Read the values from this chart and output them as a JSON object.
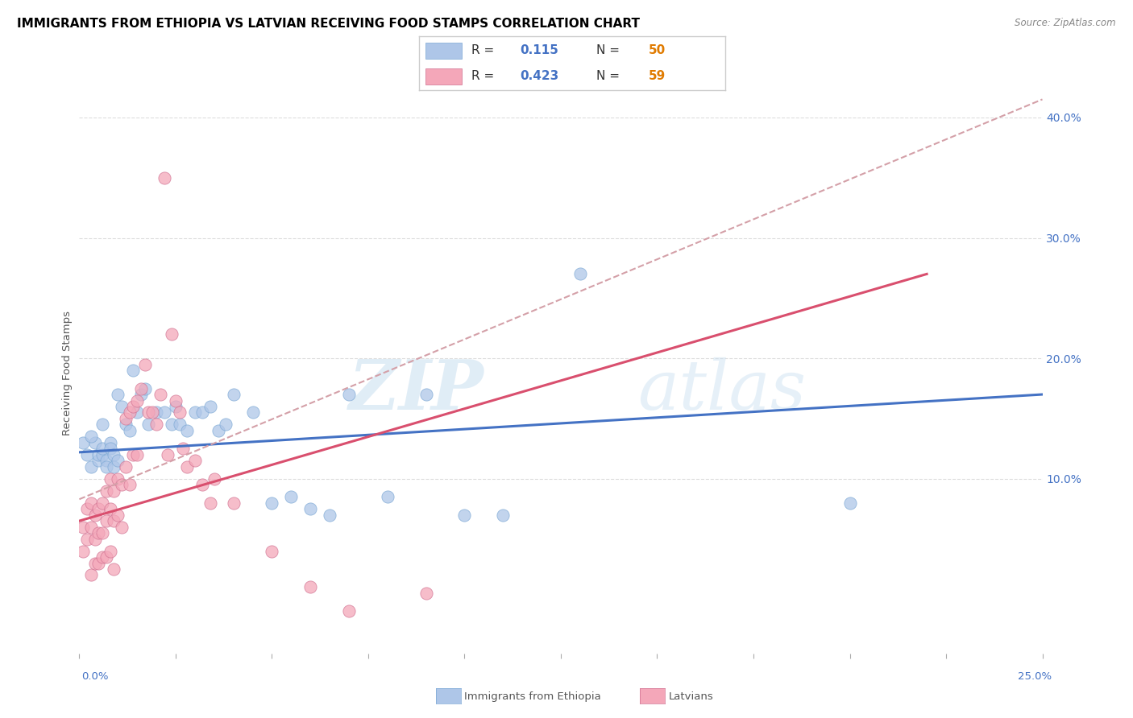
{
  "title": "IMMIGRANTS FROM ETHIOPIA VS LATVIAN RECEIVING FOOD STAMPS CORRELATION CHART",
  "source": "Source: ZipAtlas.com",
  "ylabel": "Receiving Food Stamps",
  "xlim": [
    0.0,
    0.25
  ],
  "ylim": [
    -0.045,
    0.42
  ],
  "yticks": [
    0.1,
    0.2,
    0.3,
    0.4
  ],
  "ytick_labels": [
    "10.0%",
    "20.0%",
    "30.0%",
    "40.0%"
  ],
  "blue_scatter_x": [
    0.001,
    0.002,
    0.003,
    0.004,
    0.005,
    0.005,
    0.006,
    0.006,
    0.007,
    0.007,
    0.008,
    0.008,
    0.009,
    0.009,
    0.01,
    0.01,
    0.011,
    0.012,
    0.013,
    0.014,
    0.015,
    0.016,
    0.017,
    0.018,
    0.02,
    0.022,
    0.024,
    0.025,
    0.026,
    0.028,
    0.03,
    0.032,
    0.034,
    0.036,
    0.04,
    0.045,
    0.05,
    0.055,
    0.06,
    0.07,
    0.08,
    0.09,
    0.1,
    0.11,
    0.13,
    0.2,
    0.003,
    0.006,
    0.038,
    0.065
  ],
  "blue_scatter_y": [
    0.13,
    0.12,
    0.11,
    0.13,
    0.115,
    0.12,
    0.12,
    0.125,
    0.115,
    0.11,
    0.13,
    0.125,
    0.12,
    0.11,
    0.115,
    0.17,
    0.16,
    0.145,
    0.14,
    0.19,
    0.155,
    0.17,
    0.175,
    0.145,
    0.155,
    0.155,
    0.145,
    0.16,
    0.145,
    0.14,
    0.155,
    0.155,
    0.16,
    0.14,
    0.17,
    0.155,
    0.08,
    0.085,
    0.075,
    0.17,
    0.085,
    0.17,
    0.07,
    0.07,
    0.27,
    0.08,
    0.135,
    0.145,
    0.145,
    0.07
  ],
  "pink_scatter_x": [
    0.001,
    0.001,
    0.002,
    0.002,
    0.003,
    0.003,
    0.003,
    0.004,
    0.004,
    0.004,
    0.005,
    0.005,
    0.005,
    0.006,
    0.006,
    0.006,
    0.007,
    0.007,
    0.007,
    0.008,
    0.008,
    0.008,
    0.009,
    0.009,
    0.009,
    0.01,
    0.01,
    0.011,
    0.011,
    0.012,
    0.012,
    0.013,
    0.013,
    0.014,
    0.014,
    0.015,
    0.015,
    0.016,
    0.017,
    0.018,
    0.019,
    0.02,
    0.021,
    0.022,
    0.023,
    0.024,
    0.025,
    0.026,
    0.027,
    0.028,
    0.03,
    0.032,
    0.034,
    0.035,
    0.04,
    0.05,
    0.06,
    0.07,
    0.09
  ],
  "pink_scatter_y": [
    0.06,
    0.04,
    0.075,
    0.05,
    0.08,
    0.06,
    0.02,
    0.07,
    0.05,
    0.03,
    0.075,
    0.055,
    0.03,
    0.08,
    0.055,
    0.035,
    0.09,
    0.065,
    0.035,
    0.1,
    0.075,
    0.04,
    0.09,
    0.065,
    0.025,
    0.1,
    0.07,
    0.095,
    0.06,
    0.15,
    0.11,
    0.155,
    0.095,
    0.16,
    0.12,
    0.165,
    0.12,
    0.175,
    0.195,
    0.155,
    0.155,
    0.145,
    0.17,
    0.35,
    0.12,
    0.22,
    0.165,
    0.155,
    0.125,
    0.11,
    0.115,
    0.095,
    0.08,
    0.1,
    0.08,
    0.04,
    0.01,
    -0.01,
    0.005
  ],
  "blue_line_x": [
    0.0,
    0.25
  ],
  "blue_line_y": [
    0.122,
    0.17
  ],
  "pink_line_x": [
    0.0,
    0.22
  ],
  "pink_line_y": [
    0.065,
    0.27
  ],
  "dashed_line_x": [
    0.0,
    0.25
  ],
  "dashed_line_y": [
    0.083,
    0.415
  ],
  "watermark_zip": "ZIP",
  "watermark_atlas": "atlas",
  "blue_color": "#aec6e8",
  "pink_color": "#f4a7b9",
  "blue_line_color": "#4472c4",
  "pink_line_color": "#d94f6e",
  "dashed_line_color": "#d4a0a8",
  "title_fontsize": 11,
  "figsize": [
    14.06,
    8.92
  ],
  "dpi": 100,
  "leg_R_color": "#4472c4",
  "leg_N_color": "#e07b00",
  "grid_color": "#dddddd",
  "ytick_color": "#4472c4"
}
